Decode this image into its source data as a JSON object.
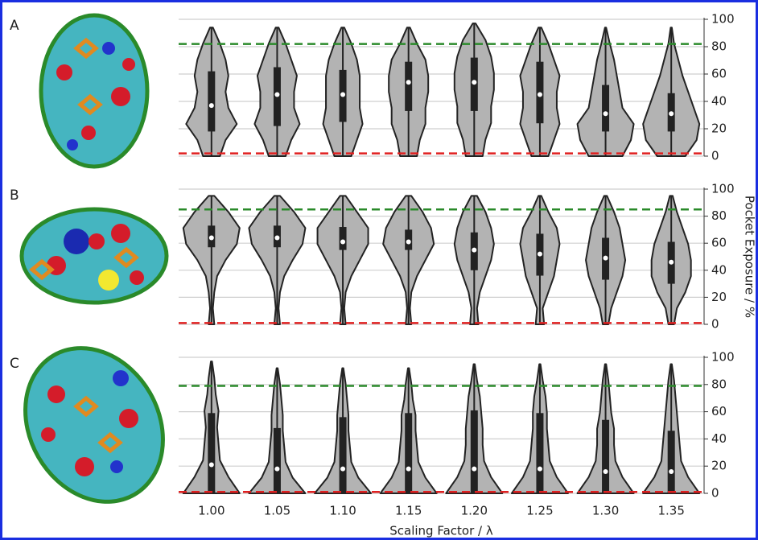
{
  "chart_data": [
    {
      "type": "violin",
      "label": "A",
      "color": "#b3b3b3",
      "grid": true,
      "ylim": [
        0,
        100
      ],
      "yticks": [
        0,
        20,
        40,
        60,
        80,
        100
      ],
      "reference_lines": [
        {
          "value": 82,
          "color": "#2a8a2a"
        },
        {
          "value": 2,
          "color": "#e02020"
        }
      ],
      "violins": [
        {
          "min": 0,
          "q1": 18,
          "median": 37,
          "q3": 62,
          "max": 94,
          "density": [
            0.3,
            0.5,
            0.9,
            0.6,
            0.5,
            0.6,
            0.5,
            0.3,
            0.05
          ]
        },
        {
          "min": 0,
          "q1": 22,
          "median": 45,
          "q3": 65,
          "max": 94,
          "density": [
            0.3,
            0.5,
            0.8,
            0.6,
            0.6,
            0.7,
            0.5,
            0.3,
            0.05
          ]
        },
        {
          "min": 0,
          "q1": 25,
          "median": 45,
          "q3": 63,
          "max": 94,
          "density": [
            0.3,
            0.5,
            0.7,
            0.6,
            0.6,
            0.6,
            0.5,
            0.3,
            0.05
          ]
        },
        {
          "min": 0,
          "q1": 33,
          "median": 54,
          "q3": 69,
          "max": 94,
          "density": [
            0.3,
            0.4,
            0.6,
            0.6,
            0.7,
            0.7,
            0.6,
            0.3,
            0.05
          ]
        },
        {
          "min": 0,
          "q1": 33,
          "median": 54,
          "q3": 72,
          "max": 97,
          "density": [
            0.3,
            0.4,
            0.6,
            0.6,
            0.7,
            0.7,
            0.6,
            0.4,
            0.05
          ]
        },
        {
          "min": 0,
          "q1": 24,
          "median": 45,
          "q3": 69,
          "max": 94,
          "density": [
            0.3,
            0.5,
            0.7,
            0.6,
            0.6,
            0.7,
            0.5,
            0.3,
            0.05
          ]
        },
        {
          "min": 0,
          "q1": 18,
          "median": 31,
          "q3": 52,
          "max": 94,
          "density": [
            0.6,
            0.9,
            1.0,
            0.6,
            0.5,
            0.4,
            0.3,
            0.15,
            0.02
          ]
        },
        {
          "min": 0,
          "q1": 18,
          "median": 31,
          "q3": 46,
          "max": 94,
          "density": [
            0.5,
            0.9,
            1.0,
            0.8,
            0.6,
            0.4,
            0.25,
            0.1,
            0.02
          ]
        }
      ]
    },
    {
      "type": "violin",
      "label": "B",
      "color": "#b3b3b3",
      "grid": true,
      "ylabel": "Pocket Exposure / %",
      "ylim": [
        0,
        100
      ],
      "yticks": [
        0,
        20,
        40,
        60,
        80,
        100
      ],
      "reference_lines": [
        {
          "value": 85,
          "color": "#2a8a2a"
        },
        {
          "value": 1,
          "color": "#e02020"
        }
      ],
      "violins": [
        {
          "min": 0,
          "q1": 57,
          "median": 64,
          "q3": 73,
          "max": 95,
          "density": [
            0.1,
            0.05,
            0.1,
            0.2,
            0.5,
            0.9,
            1.0,
            0.6,
            0.1
          ]
        },
        {
          "min": 0,
          "q1": 57,
          "median": 64,
          "q3": 73,
          "max": 95,
          "density": [
            0.1,
            0.05,
            0.1,
            0.25,
            0.55,
            0.9,
            1.0,
            0.6,
            0.1
          ]
        },
        {
          "min": 0,
          "q1": 55,
          "median": 61,
          "q3": 72,
          "max": 95,
          "density": [
            0.1,
            0.05,
            0.1,
            0.3,
            0.6,
            0.9,
            0.9,
            0.5,
            0.1
          ]
        },
        {
          "min": 0,
          "q1": 55,
          "median": 61,
          "q3": 70,
          "max": 95,
          "density": [
            0.1,
            0.05,
            0.1,
            0.3,
            0.6,
            0.9,
            0.8,
            0.5,
            0.1
          ]
        },
        {
          "min": 0,
          "q1": 40,
          "median": 55,
          "q3": 68,
          "max": 95,
          "density": [
            0.15,
            0.1,
            0.2,
            0.4,
            0.6,
            0.7,
            0.6,
            0.4,
            0.1
          ]
        },
        {
          "min": 0,
          "q1": 36,
          "median": 52,
          "q3": 67,
          "max": 95,
          "density": [
            0.15,
            0.1,
            0.3,
            0.5,
            0.6,
            0.7,
            0.6,
            0.3,
            0.05
          ]
        },
        {
          "min": 0,
          "q1": 33,
          "median": 49,
          "q3": 64,
          "max": 95,
          "density": [
            0.1,
            0.2,
            0.4,
            0.6,
            0.7,
            0.6,
            0.5,
            0.3,
            0.05
          ]
        },
        {
          "min": 0,
          "q1": 30,
          "median": 46,
          "q3": 61,
          "max": 95,
          "density": [
            0.1,
            0.2,
            0.5,
            0.7,
            0.7,
            0.6,
            0.4,
            0.2,
            0.05
          ]
        }
      ]
    },
    {
      "type": "violin",
      "label": "C",
      "color": "#b3b3b3",
      "grid": true,
      "xlabel": "Scaling Factor / λ",
      "categories": [
        "1.00",
        "1.05",
        "1.10",
        "1.15",
        "1.20",
        "1.25",
        "1.30",
        "1.35"
      ],
      "ylim": [
        0,
        100
      ],
      "yticks": [
        0,
        20,
        40,
        60,
        80,
        100
      ],
      "reference_lines": [
        {
          "value": 79,
          "color": "#2a8a2a"
        },
        {
          "value": 1,
          "color": "#e02020"
        }
      ],
      "violins": [
        {
          "min": 0,
          "q1": 0,
          "median": 21,
          "q3": 59,
          "max": 97,
          "density": [
            1.0,
            0.6,
            0.3,
            0.25,
            0.2,
            0.25,
            0.15,
            0.1,
            0.02
          ]
        },
        {
          "min": 0,
          "q1": 0,
          "median": 18,
          "q3": 48,
          "max": 92,
          "density": [
            1.0,
            0.55,
            0.3,
            0.25,
            0.2,
            0.2,
            0.15,
            0.1,
            0.02
          ]
        },
        {
          "min": 0,
          "q1": 0,
          "median": 18,
          "q3": 56,
          "max": 92,
          "density": [
            1.0,
            0.55,
            0.3,
            0.25,
            0.2,
            0.2,
            0.15,
            0.1,
            0.02
          ]
        },
        {
          "min": 0,
          "q1": 0,
          "median": 18,
          "q3": 59,
          "max": 92,
          "density": [
            1.0,
            0.6,
            0.35,
            0.3,
            0.25,
            0.25,
            0.15,
            0.1,
            0.02
          ]
        },
        {
          "min": 0,
          "q1": 0,
          "median": 18,
          "q3": 61,
          "max": 95,
          "density": [
            1.0,
            0.6,
            0.35,
            0.3,
            0.3,
            0.25,
            0.2,
            0.1,
            0.02
          ]
        },
        {
          "min": 0,
          "q1": 0,
          "median": 18,
          "q3": 59,
          "max": 95,
          "density": [
            1.0,
            0.6,
            0.35,
            0.3,
            0.25,
            0.25,
            0.2,
            0.1,
            0.02
          ]
        },
        {
          "min": 0,
          "q1": 0,
          "median": 16,
          "q3": 54,
          "max": 95,
          "density": [
            1.0,
            0.6,
            0.35,
            0.3,
            0.3,
            0.2,
            0.15,
            0.1,
            0.02
          ]
        },
        {
          "min": 0,
          "q1": 0,
          "median": 16,
          "q3": 46,
          "max": 95,
          "density": [
            1.0,
            0.6,
            0.35,
            0.3,
            0.25,
            0.2,
            0.15,
            0.1,
            0.02
          ]
        }
      ]
    }
  ]
}
